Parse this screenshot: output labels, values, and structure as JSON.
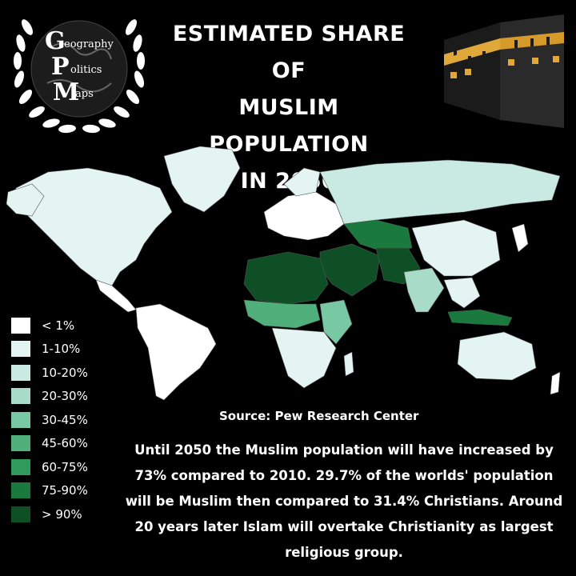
{
  "logo": {
    "letters": [
      "G",
      "P",
      "M"
    ],
    "words": [
      "eography",
      "olitics",
      "aps"
    ]
  },
  "title": {
    "lines": [
      "ESTIMATED SHARE OF",
      "MUSLIM POPULATION",
      "IN 2050"
    ]
  },
  "legend": {
    "items": [
      {
        "label": "< 1%",
        "color": "#ffffff"
      },
      {
        "label": "1-10%",
        "color": "#e4f4f2"
      },
      {
        "label": "10-20%",
        "color": "#c9eae2"
      },
      {
        "label": "20-30%",
        "color": "#a8dcc9"
      },
      {
        "label": "30-45%",
        "color": "#79c8a4"
      },
      {
        "label": "45-60%",
        "color": "#4fb07c"
      },
      {
        "label": "60-75%",
        "color": "#2f9a5a"
      },
      {
        "label": "75-90%",
        "color": "#1a7a3e"
      },
      {
        "label": "> 90%",
        "color": "#0f4f26"
      }
    ]
  },
  "source": "Source: Pew Research Center",
  "body": "Until 2050 the Muslim population will have increased by 73% compared to 2010. 29.7% of the worlds' population will be Muslim then compared to 31.4% Christians. Around 20 years later Islam will overtake Christianity as largest religious group."
}
